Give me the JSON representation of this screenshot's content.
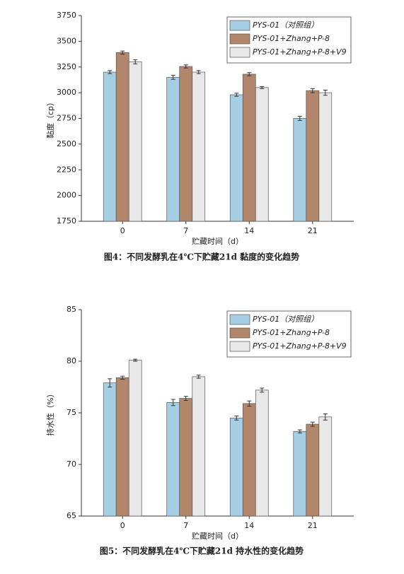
{
  "chart_data": [
    {
      "type": "bar",
      "title": "图4：不同发酵乳在4℃下贮藏21d 黏度的变化趋势",
      "x_label": "贮藏时间（d）",
      "y_label": "黏度（cp）",
      "categories": [
        "0",
        "7",
        "14",
        "21"
      ],
      "series": [
        {
          "name": "PYS-01（对照组）",
          "color": "#a6cfe6",
          "values": [
            3200,
            3150,
            2980,
            2750
          ],
          "errors": [
            15,
            20,
            15,
            20
          ]
        },
        {
          "name": "PYS-01+Zhang+P-8",
          "color": "#b1866a",
          "values": [
            3390,
            3255,
            3180,
            3020
          ],
          "errors": [
            15,
            15,
            15,
            20
          ]
        },
        {
          "name": "PYS-01+Zhang+P-8+V9",
          "color": "#e8e8e8",
          "values": [
            3300,
            3200,
            3050,
            3000
          ],
          "errors": [
            20,
            15,
            10,
            25
          ]
        }
      ],
      "ylim": [
        1750,
        3750
      ],
      "yticks": [
        1750,
        2000,
        2250,
        2500,
        2750,
        3000,
        3250,
        3500,
        3750
      ],
      "legend": "upper right"
    },
    {
      "type": "bar",
      "title": "图5：不同发酵乳在4℃下贮藏21d 持水性的变化趋势",
      "x_label": "贮藏时间（d）",
      "y_label": "持水性（%）",
      "categories": [
        "0",
        "7",
        "14",
        "21"
      ],
      "series": [
        {
          "name": "PYS-01（对照组）",
          "color": "#a6cfe6",
          "values": [
            77.9,
            76.0,
            74.5,
            73.2
          ],
          "errors": [
            0.4,
            0.3,
            0.2,
            0.15
          ]
        },
        {
          "name": "PYS-01+Zhang+P-8",
          "color": "#b1866a",
          "values": [
            78.4,
            76.4,
            75.9,
            73.9
          ],
          "errors": [
            0.15,
            0.2,
            0.25,
            0.2
          ]
        },
        {
          "name": "PYS-01+Zhang+P-8+V9",
          "color": "#e8e8e8",
          "values": [
            80.1,
            78.5,
            77.2,
            74.6
          ],
          "errors": [
            0.1,
            0.15,
            0.2,
            0.3
          ]
        }
      ],
      "ylim": [
        65,
        85
      ],
      "yticks": [
        65,
        70,
        75,
        80,
        85
      ],
      "legend": "upper right"
    }
  ]
}
